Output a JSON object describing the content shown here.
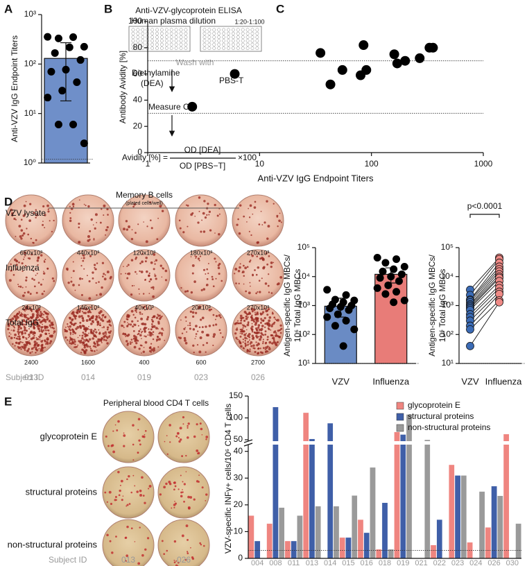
{
  "panel_letters": [
    "A",
    "B",
    "C",
    "D",
    "E"
  ],
  "diagram": {
    "title": "Anti-VZV-glycoprotein ELISA",
    "dilution_label": "Human plasma dilution",
    "dilution": "1:20-1:100",
    "wash": "Wash with",
    "reagent_1": [
      "Diethylamine",
      "(DEA)"
    ],
    "reagent_2": "PBS-T",
    "measure": "Measure OD",
    "formula_left": "Avidity [%] =",
    "numerator": "OD [DEA]",
    "denominator": "OD [PBS−T]",
    "factor": "×100"
  },
  "d_wells": {
    "title": "Memory B cells",
    "subtitle": "(plated cells/well)",
    "rows": [
      {
        "label": "VZV lysate",
        "counts": [
          "650x10³",
          "440x10³",
          "120x10³",
          "180x10³",
          "270x10³"
        ]
      },
      {
        "label": "Influenza",
        "counts": [
          "24x10³",
          "146x10³",
          "40x10³",
          "20x10³",
          "270x10³"
        ]
      },
      {
        "label": "Total IgG",
        "counts": [
          "2400",
          "1600",
          "400",
          "600",
          "2700"
        ]
      }
    ],
    "subject_label": "Subject ID",
    "subjects": [
      "013",
      "014",
      "019",
      "023",
      "026"
    ]
  },
  "e_wells": {
    "title": "Peripheral blood CD4 T cells",
    "rows": [
      "glycoprotein E",
      "structural proteins",
      "non-structural proteins"
    ],
    "subject_label": "Subject ID",
    "subjects": [
      "013",
      "026"
    ]
  },
  "chart_data": [
    {
      "type": "bar_dots",
      "ylabel": "Anti-VZV IgG Endpoint Titers",
      "log": true,
      "ylim": [
        1,
        1000
      ],
      "yticks": [
        {
          "value": 1,
          "label": "10⁰"
        },
        {
          "value": 10,
          "label": "10¹"
        },
        {
          "value": 100,
          "label": "10²"
        },
        {
          "value": 1000,
          "label": "10³"
        }
      ],
      "values": [
        130
      ],
      "error_low": [
        18
      ],
      "error_high": [
        270
      ],
      "colors": [
        "#6f8fc9"
      ],
      "points": [
        [
          355,
          350,
          330,
          224,
          218,
          167,
          121,
          77,
          70,
          43,
          29,
          21,
          6,
          6,
          2.5
        ]
      ],
      "reference_line": 1.2
    },
    {
      "type": "scatter",
      "xlabel": "Anti-VZV IgG Endpoint Titers",
      "ylabel": "Antibody Avidity [%]",
      "xlog": true,
      "xlim": [
        1,
        1000
      ],
      "xticks": [
        1,
        10,
        100,
        1000
      ],
      "ylim": [
        0,
        100
      ],
      "yticks": [
        0,
        20,
        40,
        60,
        80,
        100
      ],
      "x": [
        2.5,
        6,
        35,
        43,
        55,
        80,
        85,
        90,
        160,
        170,
        200,
        270,
        330,
        355
      ],
      "y": [
        35,
        60,
        76,
        52,
        63,
        59,
        82,
        63,
        75,
        68,
        70,
        72,
        80,
        80
      ],
      "reference_lines": [
        30,
        70
      ],
      "color": "#000000"
    },
    {
      "type": "bar_dots",
      "ylabel": [
        "Antigen-specific IgG MBCs/",
        "10⁶ Total IgG MBCs"
      ],
      "log": true,
      "ylim": [
        10,
        100000
      ],
      "yticks": [
        {
          "value": 10,
          "label": "10¹"
        },
        {
          "value": 100,
          "label": "10²"
        },
        {
          "value": 1000,
          "label": "10³"
        },
        {
          "value": 10000,
          "label": "10⁴"
        },
        {
          "value": 100000,
          "label": "10⁵"
        }
      ],
      "categories": [
        "VZV",
        "Influenza"
      ],
      "values": [
        950,
        12000
      ],
      "error_low": [
        400,
        6000
      ],
      "error_high": [
        1800,
        20000
      ],
      "colors": [
        "#6a8bc4",
        "#e87c78"
      ],
      "points": [
        [
          3500,
          2300,
          1600,
          1500,
          1300,
          1100,
          1000,
          900,
          800,
          700,
          500,
          400,
          300,
          200,
          150,
          40
        ],
        [
          45000,
          40000,
          30000,
          22000,
          18000,
          15000,
          12000,
          10000,
          9000,
          7000,
          5000,
          4000,
          3000,
          2500,
          1500,
          1300
        ]
      ],
      "reference_line": 10
    },
    {
      "type": "paired",
      "ylabel": [
        "Antigen-specific IgG MBCs/",
        "10⁶ Total IgG MBCs"
      ],
      "log": true,
      "ylim": [
        10,
        100000
      ],
      "yticks": [
        {
          "value": 10,
          "label": "10¹"
        },
        {
          "value": 100,
          "label": "10²"
        },
        {
          "value": 1000,
          "label": "10³"
        },
        {
          "value": 10000,
          "label": "10⁴"
        },
        {
          "value": 100000,
          "label": "10⁵"
        }
      ],
      "categories": [
        "VZV",
        "Influenza"
      ],
      "colors": [
        "#3b6bb5",
        "#ef8a86"
      ],
      "values": [
        [
          3500,
          2300,
          1600,
          1500,
          1300,
          1100,
          1000,
          900,
          800,
          700,
          500,
          400,
          300,
          200,
          150,
          40
        ],
        [
          45000,
          40000,
          30000,
          22000,
          18000,
          15000,
          12000,
          10000,
          9000,
          7000,
          5000,
          4000,
          3000,
          2500,
          1500,
          1300
        ]
      ],
      "annotation": "p<0.0001",
      "reference_line": 10
    },
    {
      "type": "broken_grouped_bar",
      "ylabel": "VZV-specific INFγ+ cells/10⁶ CD4 T cells",
      "categories": [
        "004",
        "008",
        "011",
        "013",
        "014",
        "015",
        "016",
        "018",
        "019",
        "021",
        "022",
        "023",
        "024",
        "026",
        "030"
      ],
      "ylim_lower": [
        0,
        42
      ],
      "ylim_upper": [
        50,
        150
      ],
      "yticks_lower": [
        0,
        10,
        20,
        30,
        40
      ],
      "yticks_upper": [
        50,
        100,
        150
      ],
      "legend": "top-right",
      "reference_line": 3,
      "series": [
        {
          "name": "glycoprotein E",
          "color": "#ef8580",
          "values": [
            16,
            13,
            6.5,
            112,
            null,
            7.8,
            14.5,
            3.4,
            68,
            null,
            5,
            35,
            6,
            11.6,
            63
          ]
        },
        {
          "name": "structural proteins",
          "color": "#3f5fa8",
          "values": [
            6.5,
            125,
            6.5,
            52,
            88,
            7.8,
            9.6,
            20.8,
            62,
            null,
            14.5,
            31,
            null,
            27,
            null
          ]
        },
        {
          "name": "non-structural proteins",
          "color": "#9a9a9a",
          "values": [
            null,
            19,
            16,
            19.5,
            19.5,
            23.5,
            34,
            3.4,
            108,
            50,
            null,
            31,
            25,
            23.4,
            13
          ]
        }
      ]
    }
  ]
}
